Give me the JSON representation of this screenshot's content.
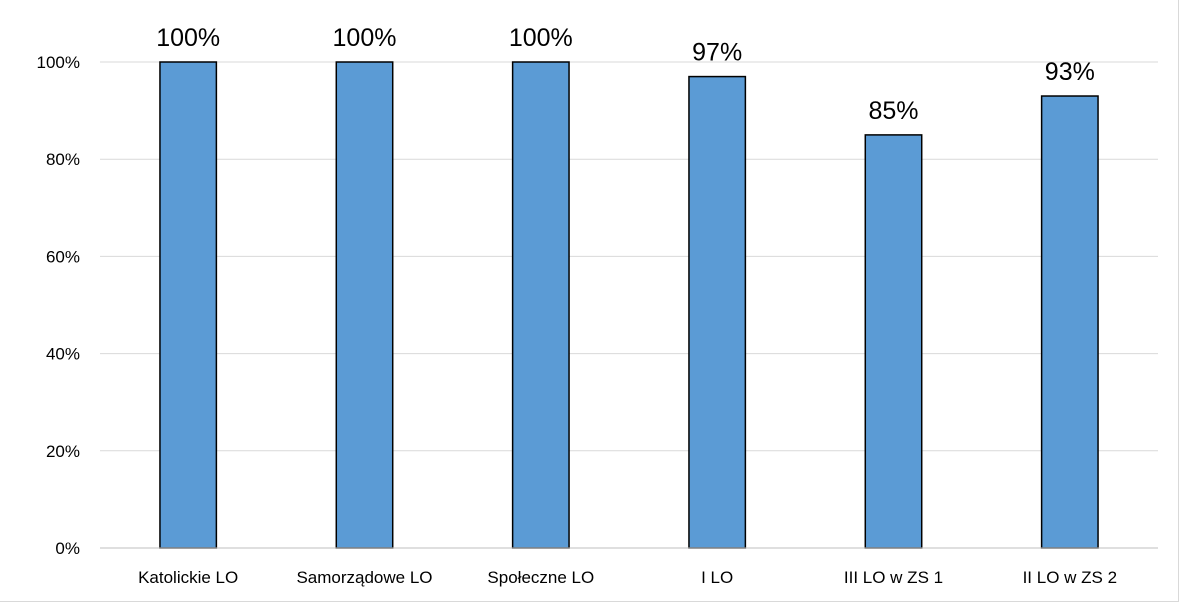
{
  "chart_data": {
    "type": "bar",
    "categories": [
      "Katolickie LO",
      "Samorządowe LO",
      "Społeczne LO",
      "I LO",
      "III LO w ZS 1",
      "II LO w ZS 2"
    ],
    "values": [
      100,
      100,
      100,
      97,
      85,
      93
    ],
    "data_labels": [
      "100%",
      "100%",
      "100%",
      "97%",
      "85%",
      "93%"
    ],
    "y_ticks": [
      0,
      20,
      40,
      60,
      80,
      100
    ],
    "y_tick_labels": [
      "0%",
      "20%",
      "40%",
      "60%",
      "80%",
      "100%"
    ],
    "ylim": [
      0,
      100
    ],
    "grid": true,
    "legend": "none",
    "colors": {
      "bar_fill": "#5b9bd5",
      "bar_stroke": "#000000",
      "gridline": "#d9d9d9",
      "axis": "#bfbfbf"
    }
  }
}
